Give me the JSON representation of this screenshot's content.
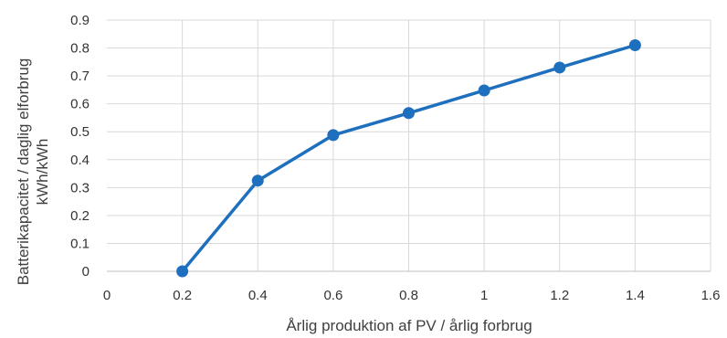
{
  "chart_data": {
    "type": "line",
    "title": "",
    "xlabel": "Årlig produktion af PV / årlig forbrug",
    "ylabel_lines": [
      "Batterikapacitet / daglig elforbrug",
      "kWh/kWh"
    ],
    "xlim": [
      0,
      1.6
    ],
    "ylim": [
      0,
      0.9
    ],
    "x_ticks": [
      "0",
      "0.2",
      "0.4",
      "0.6",
      "0.8",
      "1",
      "1.2",
      "1.4",
      "1.6"
    ],
    "y_ticks": [
      "0",
      "0.1",
      "0.2",
      "0.3",
      "0.4",
      "0.5",
      "0.6",
      "0.7",
      "0.8",
      "0.9"
    ],
    "grid": "vertical-and-horizontal",
    "legend": "none",
    "series": [
      {
        "color": "#1f6fbf",
        "x": [
          0.2,
          0.4,
          0.6,
          0.8,
          1.0,
          1.2,
          1.4
        ],
        "y": [
          0.0,
          0.325,
          0.488,
          0.567,
          0.648,
          0.73,
          0.81
        ]
      }
    ]
  }
}
